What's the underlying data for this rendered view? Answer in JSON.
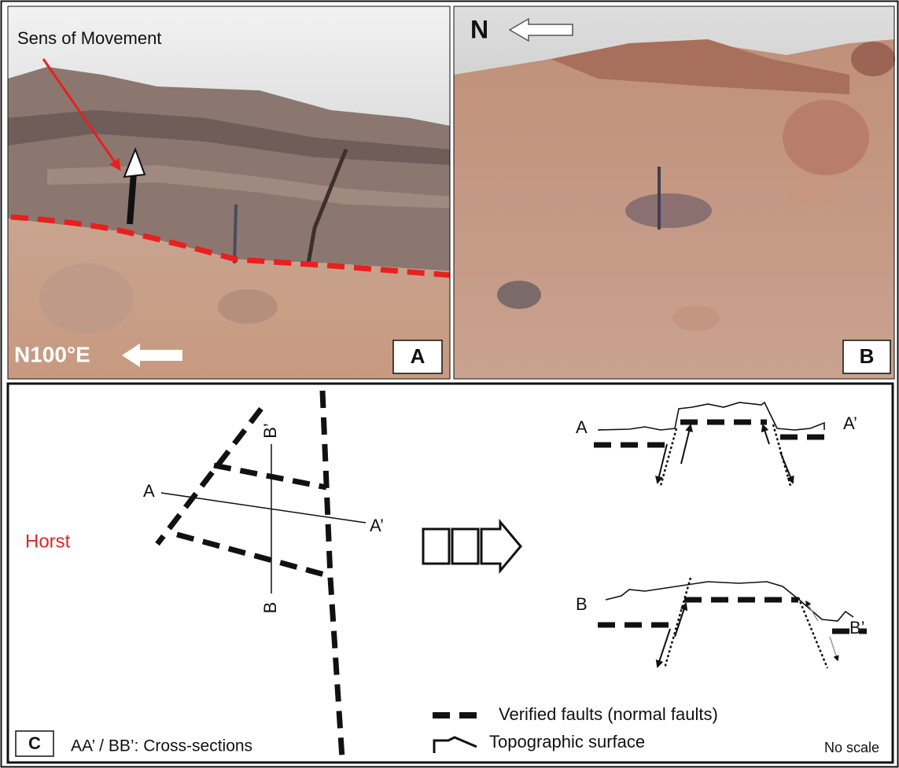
{
  "panels": [
    {
      "label": "A",
      "annotation": "Sens of Movement",
      "direction": "N100°E"
    },
    {
      "label": "B",
      "direction": "N"
    },
    {
      "label": "C",
      "map": {
        "feature": "Horst",
        "section_labels": [
          "A",
          "A’",
          "B’",
          "B"
        ]
      },
      "cross_sections": [
        {
          "start": "A",
          "end": "A’"
        },
        {
          "start": "B",
          "end": "B’"
        }
      ],
      "legend": [
        "Verified faults (normal faults)",
        "Topographic surface"
      ],
      "note": "AA’ / BB’: Cross-sections",
      "scale": "No scale"
    }
  ]
}
